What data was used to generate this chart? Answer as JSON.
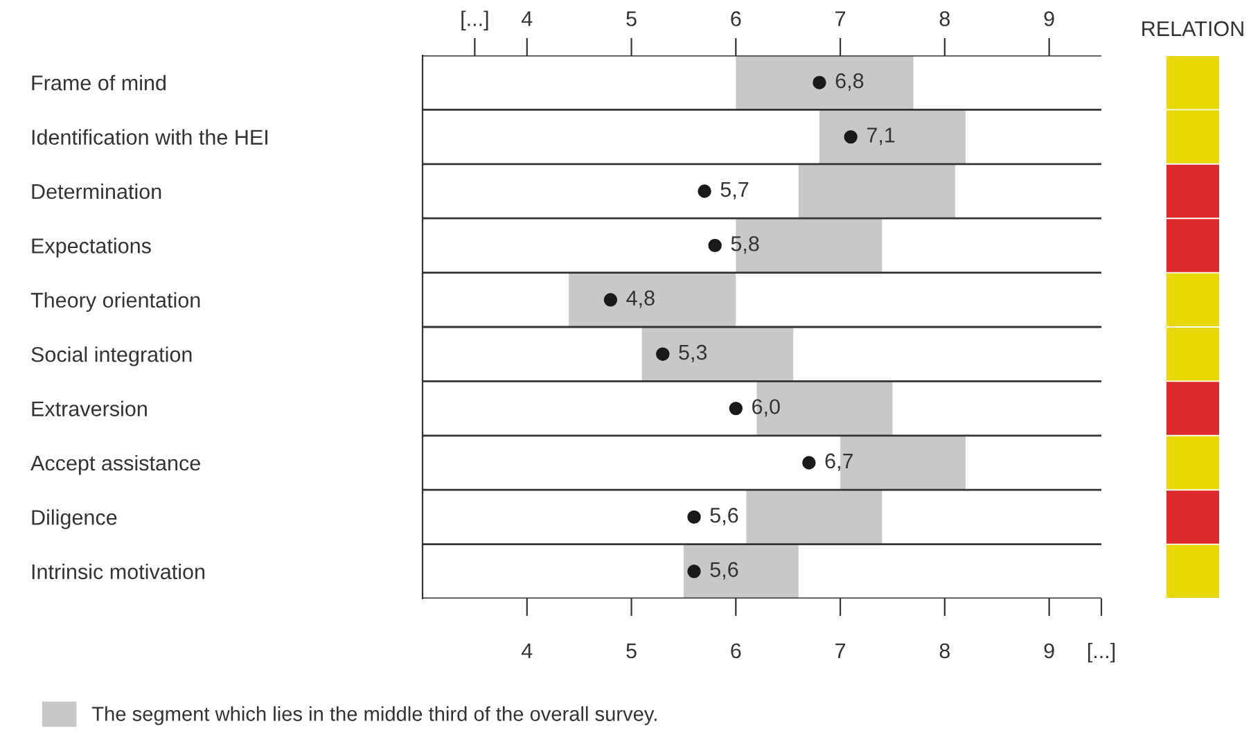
{
  "chart_data": [
    {
      "type": "bar",
      "orientation": "horizontal",
      "categories": [
        "Frame of mind",
        "Identification with the HEI",
        "Determination",
        "Expectations",
        "Theory orientation",
        "Social integration",
        "Extraversion",
        "Accept assistance",
        "Diligence",
        "Intrinsic motivation"
      ],
      "series": [
        {
          "type": "bar",
          "name": "The segment which lies in the middle third of the overall survey.",
          "color": "#c8c8c8",
          "base": [
            6.0,
            6.8,
            6.6,
            6.0,
            4.4,
            5.1,
            6.2,
            7.0,
            6.1,
            5.5
          ],
          "values": [
            1.7,
            1.4,
            1.5,
            1.4,
            1.6,
            1.45,
            1.3,
            1.2,
            1.3,
            1.1
          ]
        },
        {
          "type": "scatter",
          "color": "#1a1a1a",
          "values": [
            6.8,
            7.1,
            5.7,
            5.8,
            4.8,
            5.3,
            6.0,
            6.7,
            5.6,
            5.6
          ],
          "value_labels": [
            "6,8",
            "7,1",
            "5,7",
            "5,8",
            "4,8",
            "5,3",
            "6,0",
            "6,7",
            "5,6",
            "5,6"
          ]
        }
      ],
      "xlim": [
        3,
        9.5
      ],
      "xticks": [
        4,
        5,
        6,
        7,
        8,
        9,
        {
          "value": 9.5,
          "label": "[...]"
        }
      ],
      "x2lim": [
        3,
        9.5
      ],
      "x2ticks": [
        {
          "value": 3.5,
          "label": "[...]"
        },
        4,
        5,
        6,
        7,
        8,
        9
      ],
      "marker": "circle",
      "grid": "y",
      "legend": "bottom left"
    },
    {
      "type": "other",
      "title": "RELATION",
      "categories": [
        null,
        null,
        null,
        null,
        null,
        null,
        null,
        null,
        null,
        null
      ],
      "colors": [
        "#e8d800",
        "#e8d800",
        "#dc2a2a",
        "#dc2a2a",
        "#e8d800",
        "#e8d800",
        "#dc2a2a",
        "#e8d800",
        "#dc2a2a",
        "#e8d800"
      ]
    }
  ]
}
